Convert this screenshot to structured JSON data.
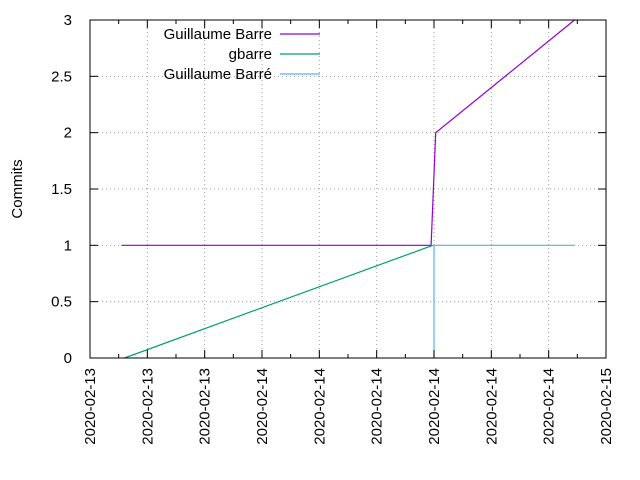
{
  "chart_data": {
    "type": "line",
    "title": "",
    "xlabel": "",
    "ylabel": "Commits",
    "ylim": [
      0,
      3
    ],
    "xlim": [
      0,
      9
    ],
    "grid": true,
    "legend_position": "top-left",
    "y_ticks": [
      "0",
      "0.5",
      "1",
      "1.5",
      "2",
      "2.5",
      "3"
    ],
    "x_ticks": [
      "2020-02-13",
      "2020-02-13",
      "2020-02-13",
      "2020-02-14",
      "2020-02-14",
      "2020-02-14",
      "2020-02-14",
      "2020-02-14",
      "2020-02-14",
      "2020-02-15"
    ],
    "series": [
      {
        "name": "Guillaume Barre",
        "color": "#9400d3",
        "points": [
          [
            0.55,
            1
          ],
          [
            5.95,
            1
          ],
          [
            6.03,
            2
          ],
          [
            8.45,
            3
          ]
        ]
      },
      {
        "name": "gbarre",
        "color": "#009e73",
        "points": [
          [
            0.6,
            0
          ],
          [
            5.98,
            1
          ]
        ]
      },
      {
        "name": "Guillaume Barré",
        "color": "#56b4e9",
        "points": [
          [
            6.0,
            0
          ],
          [
            6.0,
            1
          ],
          [
            8.45,
            1
          ]
        ]
      }
    ]
  }
}
